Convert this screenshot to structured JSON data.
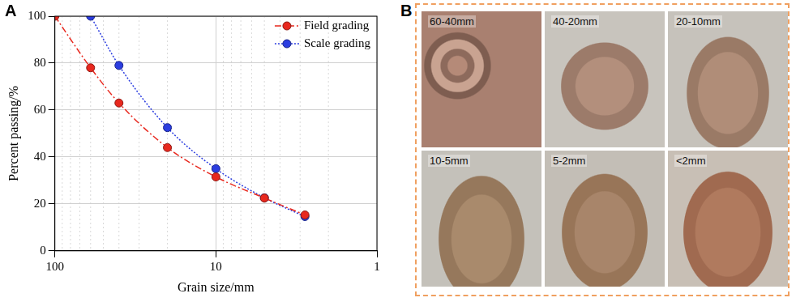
{
  "panel_labels": [
    "A",
    "B"
  ],
  "chart_data": {
    "type": "line",
    "x_label": "Grain size/mm",
    "y_label": "Percent passing/%",
    "log": "x",
    "xlim": [
      100,
      1
    ],
    "xticks": [
      100,
      10,
      1
    ],
    "ylim": [
      0,
      100
    ],
    "yticks": [
      0,
      20,
      40,
      60,
      80,
      100
    ],
    "grid": true,
    "legend": "upper right",
    "series": [
      {
        "name": "Field grading",
        "color": "#e8281e",
        "marker": "circle",
        "line_style": "dashdot",
        "x": [
          100,
          60,
          40,
          20,
          10,
          5,
          2.8
        ],
        "values": [
          100,
          78,
          63,
          44,
          31.5,
          22.5,
          15.3
        ]
      },
      {
        "name": "Scale grading",
        "color": "#2b3de0",
        "marker": "circle",
        "line_style": "dotted",
        "x": [
          60,
          40,
          20,
          10,
          5,
          2.8
        ],
        "values": [
          100,
          79,
          52.5,
          35,
          22.6,
          14.6
        ]
      }
    ]
  },
  "photo_panel": {
    "labels": [
      "60-40mm",
      "40-20mm",
      "20-10mm",
      "10-5mm",
      "5-2mm",
      "<2mm"
    ]
  }
}
